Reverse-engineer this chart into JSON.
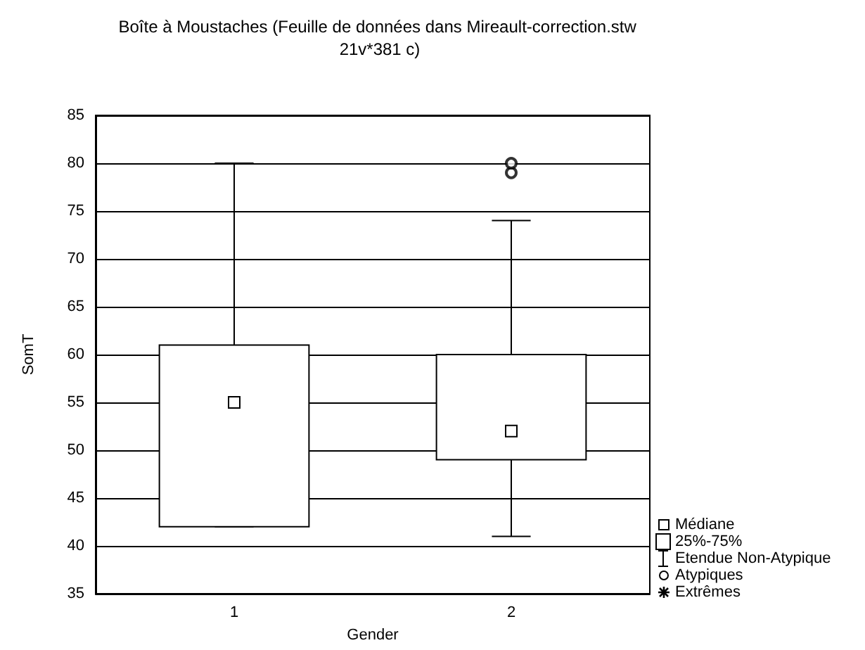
{
  "chart_data": {
    "type": "box",
    "title": "Boîte à Moustaches (Feuille de données dans Mireault-correction.stw 21v*381 c)",
    "xlabel": "Gender",
    "ylabel": "SomT",
    "categories": [
      "1",
      "2"
    ],
    "color": "#000000",
    "boxes": [
      {
        "low": 42,
        "q1": 42,
        "median": 55,
        "q3": 61,
        "high": 80
      },
      {
        "low": 41,
        "q1": 49,
        "median": 52,
        "q3": 60,
        "high": 74,
        "outliers": [
          79,
          80
        ]
      }
    ],
    "ylim": [
      35,
      85
    ],
    "yticks": [
      35,
      40,
      45,
      50,
      55,
      60,
      65,
      70,
      75,
      80,
      85
    ],
    "grid": "y",
    "annotations": [
      "Médiane",
      "25%-75%",
      "Etendue Non-Atypique",
      "Atypiques",
      "Extrêmes"
    ]
  }
}
